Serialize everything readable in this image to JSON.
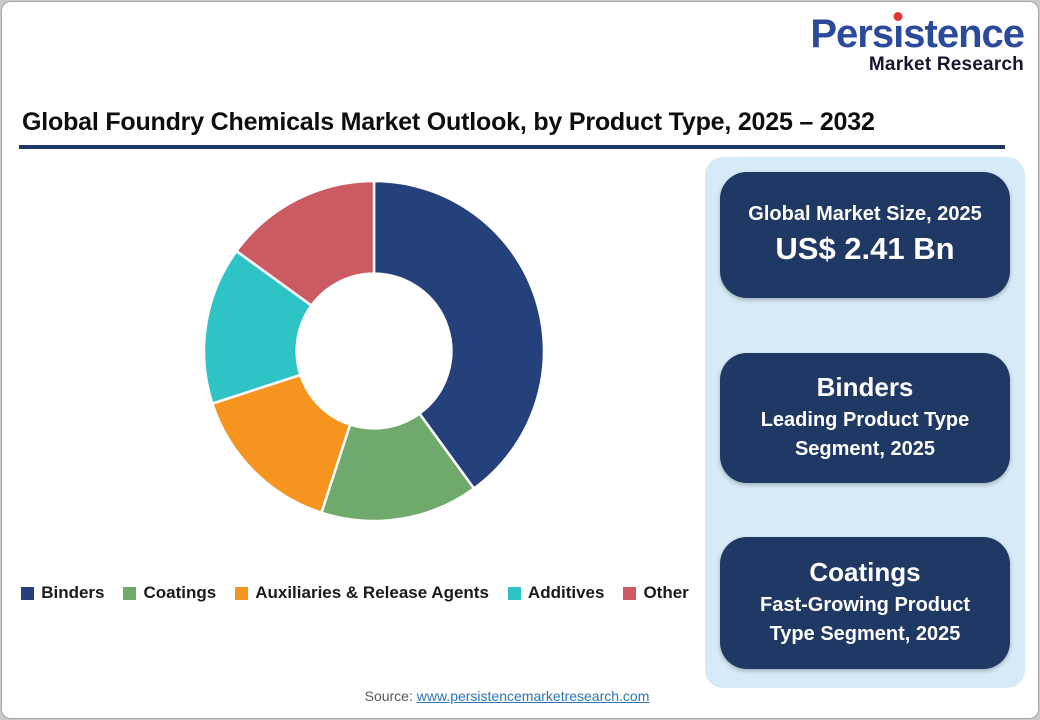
{
  "colors": {
    "card_border": "#ababab",
    "outer_background": "#c9c9c9",
    "title_text": "#0d0d0d",
    "title_rule": "#1f3864",
    "panel_background": "#d6ebf7",
    "info_card_background": "#1f3864",
    "info_card_text": "#ffffff",
    "logo_blue": "#2b4a9b",
    "logo_dark": "#17172f",
    "logo_dot_red": "#e5342f",
    "source_gray": "#595959",
    "link_blue": "#2e75b6",
    "slice_gap": "#ffffff"
  },
  "brand": {
    "name": "Persistence",
    "tagline": "Market Research"
  },
  "title": "Global Foundry Chemicals Market Outlook, by Product Type, 2025 – 2032",
  "chart_data": {
    "type": "pie",
    "subtype": "donut",
    "title": "Global Foundry Chemicals Market Outlook, by Product Type, 2025 – 2032",
    "categories": [
      "Binders",
      "Coatings",
      "Auxiliaries & Release Agents",
      "Additives",
      "Other"
    ],
    "values": [
      40,
      15,
      15,
      15,
      15
    ],
    "unit": "% share (estimated from arc angles; no labels shown)",
    "colors": [
      "#24417c",
      "#6fa96b",
      "#f5941f",
      "#2ec4c6",
      "#cb5a63"
    ],
    "start_at_top": true,
    "direction": "clockwise",
    "inner_radius_ratio": 0.455,
    "legend_position": "bottom"
  },
  "info_panel": {
    "cards": [
      {
        "line1": "Global Market Size, 2025",
        "line2": "US$ 2.41 Bn"
      },
      {
        "line1": "Binders",
        "line2": "Leading Product Type Segment, 2025"
      },
      {
        "line1": "Coatings",
        "line2": "Fast-Growing Product Type Segment, 2025"
      }
    ]
  },
  "footer": {
    "source_label": "Source:",
    "source_url": "www.persistencemarketresearch.com"
  }
}
